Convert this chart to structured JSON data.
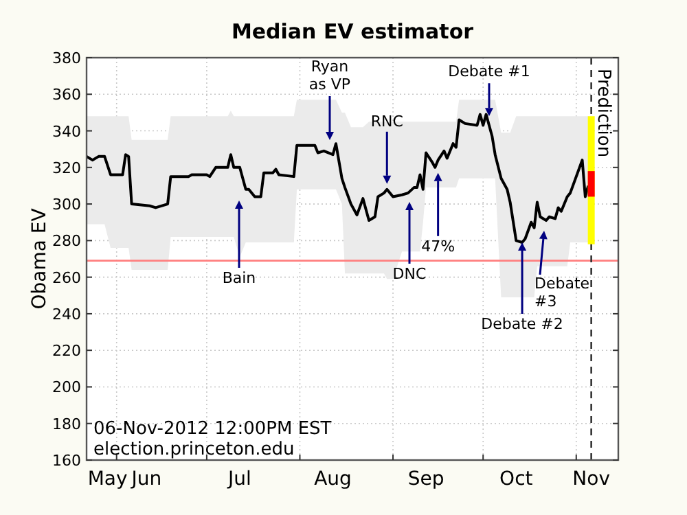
{
  "chart_data": {
    "type": "line",
    "title": "Median EV estimator",
    "ylabel": "Obama EV",
    "xlim": [
      "2012-05-22",
      "2012-11-15"
    ],
    "ylim": [
      160,
      380
    ],
    "yticks": [
      160,
      180,
      200,
      220,
      240,
      260,
      280,
      300,
      320,
      340,
      360,
      380
    ],
    "xticks": [
      {
        "value": "2012-06-01",
        "label": null
      },
      {
        "value": "2012-07-01",
        "label": null
      },
      {
        "value": "2012-08-01",
        "label": null
      },
      {
        "value": "2012-09-01",
        "label": null
      },
      {
        "value": "2012-10-01",
        "label": null
      },
      {
        "value": "2012-11-01",
        "label": null
      },
      {
        "value": "2012-05-29",
        "label": "May"
      },
      {
        "value": "2012-06-11",
        "label": "Jun"
      },
      {
        "value": "2012-07-12",
        "label": "Jul"
      },
      {
        "value": "2012-08-12",
        "label": "Aug"
      },
      {
        "value": "2012-09-12",
        "label": "Sep"
      },
      {
        "value": "2012-10-12",
        "label": "Oct"
      },
      {
        "value": "2012-11-06",
        "label": "Nov"
      }
    ],
    "grid": true,
    "marker": "none",
    "line_style": "solid",
    "x": [
      "2012-05-22",
      "2012-05-24",
      "2012-05-26",
      "2012-05-28",
      "2012-05-30",
      "2012-06-03",
      "2012-06-04",
      "2012-06-05",
      "2012-06-06",
      "2012-06-12",
      "2012-06-14",
      "2012-06-18",
      "2012-06-19",
      "2012-06-25",
      "2012-06-26",
      "2012-07-01",
      "2012-07-02",
      "2012-07-04",
      "2012-07-08",
      "2012-07-09",
      "2012-07-10",
      "2012-07-12",
      "2012-07-14",
      "2012-07-15",
      "2012-07-17",
      "2012-07-19",
      "2012-07-20",
      "2012-07-23",
      "2012-07-24",
      "2012-07-25",
      "2012-07-30",
      "2012-07-31",
      "2012-08-06",
      "2012-08-07",
      "2012-08-09",
      "2012-08-12",
      "2012-08-13",
      "2012-08-15",
      "2012-08-16",
      "2012-08-18",
      "2012-08-20",
      "2012-08-22",
      "2012-08-24",
      "2012-08-26",
      "2012-08-27",
      "2012-08-29",
      "2012-08-30",
      "2012-09-01",
      "2012-09-04",
      "2012-09-06",
      "2012-09-08",
      "2012-09-09",
      "2012-09-10",
      "2012-09-11",
      "2012-09-12",
      "2012-09-14",
      "2012-09-15",
      "2012-09-16",
      "2012-09-18",
      "2012-09-19",
      "2012-09-21",
      "2012-09-22",
      "2012-09-23",
      "2012-09-25",
      "2012-09-29",
      "2012-09-30",
      "2012-10-01",
      "2012-10-02",
      "2012-10-04",
      "2012-10-05",
      "2012-10-07",
      "2012-10-09",
      "2012-10-10",
      "2012-10-12",
      "2012-10-14",
      "2012-10-15",
      "2012-10-17",
      "2012-10-18",
      "2012-10-19",
      "2012-10-20",
      "2012-10-22",
      "2012-10-23",
      "2012-10-25",
      "2012-10-26",
      "2012-10-27",
      "2012-10-29",
      "2012-10-30",
      "2012-11-01",
      "2012-11-03",
      "2012-11-04",
      "2012-11-05"
    ],
    "series": [
      {
        "color": "#000000",
        "values": [
          326,
          324,
          326,
          326,
          316,
          316,
          327,
          326,
          300,
          299,
          298,
          300,
          315,
          315,
          316,
          316,
          315,
          320,
          320,
          327,
          320,
          320,
          308,
          308,
          304,
          304,
          317,
          317,
          319,
          316,
          315,
          332,
          332,
          328,
          329,
          327,
          333,
          314,
          309,
          300,
          294,
          303,
          291,
          293,
          304,
          306,
          308,
          304,
          305,
          306,
          309,
          309,
          316,
          308,
          328,
          323,
          320,
          324,
          329,
          325,
          333,
          331,
          346,
          344,
          343,
          349,
          343,
          349,
          337,
          327,
          314,
          308,
          301,
          280,
          279,
          281,
          290,
          287,
          301,
          293,
          291,
          293,
          292,
          298,
          296,
          304,
          306,
          315,
          324,
          304,
          310
        ],
        "lower": [
          289,
          289,
          289,
          289,
          276,
          276,
          276,
          276,
          264,
          264,
          264,
          264,
          282,
          282,
          282,
          282,
          282,
          282,
          282,
          282,
          282,
          271,
          279,
          279,
          279,
          279,
          279,
          279,
          279,
          279,
          279,
          308,
          308,
          308,
          308,
          308,
          308,
          300,
          262,
          262,
          262,
          262,
          262,
          262,
          262,
          262,
          259,
          259,
          274,
          274,
          274,
          274,
          274,
          290,
          309,
          309,
          309,
          309,
          309,
          309,
          309,
          309,
          314,
          314,
          314,
          314,
          314,
          314,
          314,
          314,
          249,
          249,
          249,
          249,
          249,
          249,
          249,
          249,
          266,
          266,
          266,
          266,
          266,
          266,
          266,
          266,
          279,
          279,
          279,
          279,
          279
        ],
        "upper": [
          348,
          348,
          348,
          348,
          348,
          348,
          348,
          348,
          335,
          335,
          335,
          335,
          348,
          348,
          348,
          348,
          348,
          348,
          348,
          351,
          348,
          348,
          348,
          348,
          348,
          348,
          348,
          348,
          348,
          348,
          348,
          357,
          357,
          357,
          357,
          357,
          357,
          350,
          350,
          342,
          342,
          342,
          345,
          345,
          345,
          345,
          345,
          345,
          345,
          345,
          345,
          345,
          345,
          345,
          345,
          345,
          345,
          345,
          345,
          345,
          345,
          345,
          357,
          357,
          357,
          357,
          357,
          357,
          357,
          357,
          339,
          339,
          339,
          348,
          348,
          348,
          348,
          348,
          348,
          348,
          348,
          348,
          348,
          348,
          348,
          348,
          348,
          348,
          348,
          348,
          348
        ]
      },
      {
        "type": "bar",
        "color": "#ffff00",
        "x": [
          "2012-11-06"
        ],
        "base": [
          278
        ],
        "values": [
          70
        ]
      },
      {
        "type": "bar",
        "color": "#ff0000",
        "x": [
          "2012-11-06"
        ],
        "base": [
          304
        ],
        "values": [
          14
        ]
      }
    ],
    "ref_lines": [
      {
        "axis": "y",
        "value": 269,
        "color": "#ff7f7f",
        "line_style": "solid"
      },
      {
        "axis": "x",
        "value": "2012-11-06",
        "label": "Prediction",
        "color": "#333333",
        "line_style": "dashed"
      }
    ],
    "annotations": [
      "Bain",
      "Ryan\nas VP",
      {
        "text": "RNC",
        "x": "2012-08-30",
        "y": 311
      },
      "DNC",
      {
        "text": "47%",
        "x": "2012-09-16",
        "y": 317
      },
      {
        "text": "Debate #1",
        "x": "2012-10-03",
        "y": 348
      },
      {
        "text": "Debate #2",
        "x": "2012-10-14",
        "y": 279
      },
      "Debate\n#3",
      "06-Nov-2012 12:00PM EST",
      "election.princeton.edu"
    ]
  }
}
